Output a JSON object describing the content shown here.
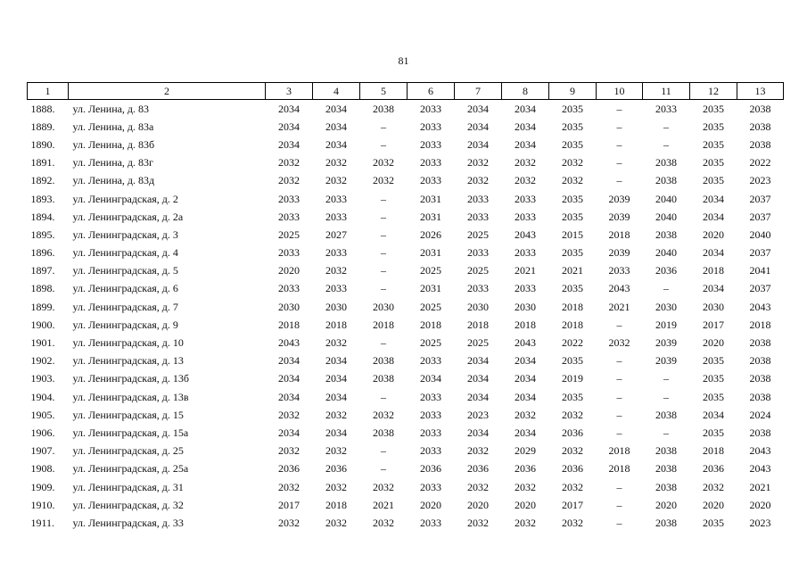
{
  "page_number": "81",
  "table": {
    "header": [
      "1",
      "2",
      "3",
      "4",
      "5",
      "6",
      "7",
      "8",
      "9",
      "10",
      "11",
      "12",
      "13"
    ],
    "rows": [
      [
        "1888.",
        "ул. Ленина, д. 83",
        "2034",
        "2034",
        "2038",
        "2033",
        "2034",
        "2034",
        "2035",
        "–",
        "2033",
        "2035",
        "2038"
      ],
      [
        "1889.",
        "ул. Ленина, д. 83а",
        "2034",
        "2034",
        "–",
        "2033",
        "2034",
        "2034",
        "2035",
        "–",
        "–",
        "2035",
        "2038"
      ],
      [
        "1890.",
        "ул. Ленина, д. 83б",
        "2034",
        "2034",
        "–",
        "2033",
        "2034",
        "2034",
        "2035",
        "–",
        "–",
        "2035",
        "2038"
      ],
      [
        "1891.",
        "ул. Ленина, д. 83г",
        "2032",
        "2032",
        "2032",
        "2033",
        "2032",
        "2032",
        "2032",
        "–",
        "2038",
        "2035",
        "2022"
      ],
      [
        "1892.",
        "ул. Ленина, д. 83д",
        "2032",
        "2032",
        "2032",
        "2033",
        "2032",
        "2032",
        "2032",
        "–",
        "2038",
        "2035",
        "2023"
      ],
      [
        "1893.",
        "ул. Ленинградская, д. 2",
        "2033",
        "2033",
        "–",
        "2031",
        "2033",
        "2033",
        "2035",
        "2039",
        "2040",
        "2034",
        "2037"
      ],
      [
        "1894.",
        "ул. Ленинградская, д. 2а",
        "2033",
        "2033",
        "–",
        "2031",
        "2033",
        "2033",
        "2035",
        "2039",
        "2040",
        "2034",
        "2037"
      ],
      [
        "1895.",
        "ул. Ленинградская, д. 3",
        "2025",
        "2027",
        "–",
        "2026",
        "2025",
        "2043",
        "2015",
        "2018",
        "2038",
        "2020",
        "2040"
      ],
      [
        "1896.",
        "ул. Ленинградская, д. 4",
        "2033",
        "2033",
        "–",
        "2031",
        "2033",
        "2033",
        "2035",
        "2039",
        "2040",
        "2034",
        "2037"
      ],
      [
        "1897.",
        "ул. Ленинградская, д. 5",
        "2020",
        "2032",
        "–",
        "2025",
        "2025",
        "2021",
        "2021",
        "2033",
        "2036",
        "2018",
        "2041"
      ],
      [
        "1898.",
        "ул. Ленинградская, д. 6",
        "2033",
        "2033",
        "–",
        "2031",
        "2033",
        "2033",
        "2035",
        "2043",
        "–",
        "2034",
        "2037"
      ],
      [
        "1899.",
        "ул. Ленинградская, д. 7",
        "2030",
        "2030",
        "2030",
        "2025",
        "2030",
        "2030",
        "2018",
        "2021",
        "2030",
        "2030",
        "2043"
      ],
      [
        "1900.",
        "ул. Ленинградская, д. 9",
        "2018",
        "2018",
        "2018",
        "2018",
        "2018",
        "2018",
        "2018",
        "–",
        "2019",
        "2017",
        "2018"
      ],
      [
        "1901.",
        "ул. Ленинградская, д. 10",
        "2043",
        "2032",
        "–",
        "2025",
        "2025",
        "2043",
        "2022",
        "2032",
        "2039",
        "2020",
        "2038"
      ],
      [
        "1902.",
        "ул. Ленинградская, д. 13",
        "2034",
        "2034",
        "2038",
        "2033",
        "2034",
        "2034",
        "2035",
        "–",
        "2039",
        "2035",
        "2038"
      ],
      [
        "1903.",
        "ул. Ленинградская, д. 13б",
        "2034",
        "2034",
        "2038",
        "2034",
        "2034",
        "2034",
        "2019",
        "–",
        "–",
        "2035",
        "2038"
      ],
      [
        "1904.",
        "ул. Ленинградская, д. 13в",
        "2034",
        "2034",
        "–",
        "2033",
        "2034",
        "2034",
        "2035",
        "–",
        "–",
        "2035",
        "2038"
      ],
      [
        "1905.",
        "ул. Ленинградская, д. 15",
        "2032",
        "2032",
        "2032",
        "2033",
        "2023",
        "2032",
        "2032",
        "–",
        "2038",
        "2034",
        "2024"
      ],
      [
        "1906.",
        "ул. Ленинградская, д. 15а",
        "2034",
        "2034",
        "2038",
        "2033",
        "2034",
        "2034",
        "2036",
        "–",
        "–",
        "2035",
        "2038"
      ],
      [
        "1907.",
        "ул. Ленинградская, д. 25",
        "2032",
        "2032",
        "–",
        "2033",
        "2032",
        "2029",
        "2032",
        "2018",
        "2038",
        "2018",
        "2043"
      ],
      [
        "1908.",
        "ул. Ленинградская, д. 25а",
        "2036",
        "2036",
        "–",
        "2036",
        "2036",
        "2036",
        "2036",
        "2018",
        "2038",
        "2036",
        "2043"
      ],
      [
        "1909.",
        "ул. Ленинградская, д. 31",
        "2032",
        "2032",
        "2032",
        "2033",
        "2032",
        "2032",
        "2032",
        "–",
        "2038",
        "2032",
        "2021"
      ],
      [
        "1910.",
        "ул. Ленинградская, д. 32",
        "2017",
        "2018",
        "2021",
        "2020",
        "2020",
        "2020",
        "2017",
        "–",
        "2020",
        "2020",
        "2020"
      ],
      [
        "1911.",
        "ул. Ленинградская, д. 33",
        "2032",
        "2032",
        "2032",
        "2033",
        "2032",
        "2032",
        "2032",
        "–",
        "2038",
        "2035",
        "2023"
      ]
    ]
  }
}
